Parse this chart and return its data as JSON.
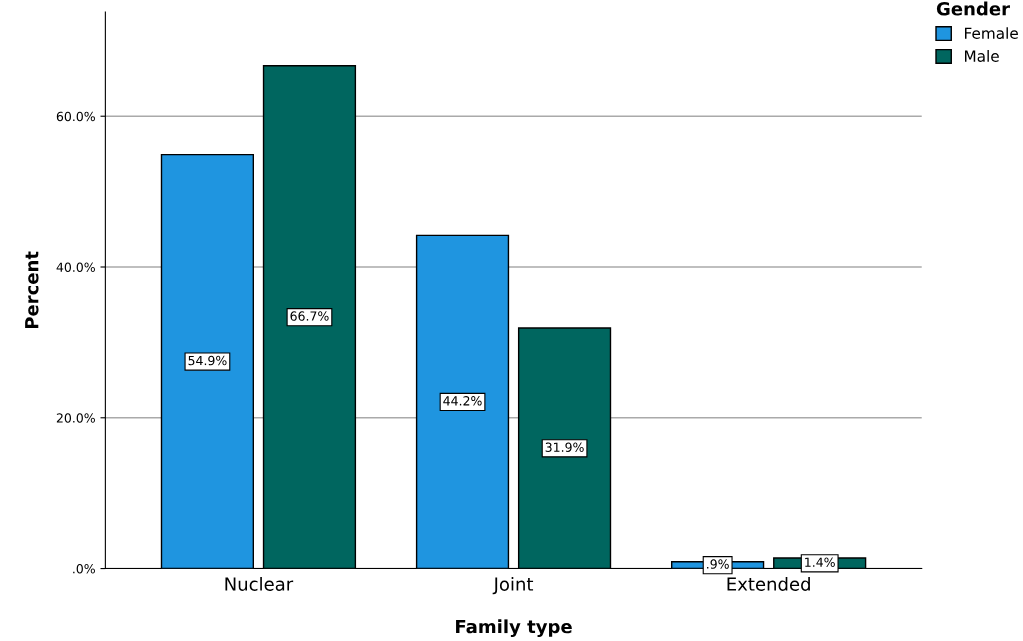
{
  "chart_data": {
    "type": "bar",
    "xlabel": "Family type",
    "ylabel": "Percent",
    "categories": [
      "Nuclear",
      "Joint",
      "Extended"
    ],
    "series": [
      {
        "name": "Female",
        "color": "#1f95e0",
        "values": [
          54.9,
          44.2,
          0.9
        ],
        "value_labels": [
          "54.9%",
          "44.2%",
          ".9%"
        ]
      },
      {
        "name": "Male",
        "color": "#00665f",
        "values": [
          66.7,
          31.9,
          1.4
        ],
        "value_labels": [
          "66.7%",
          "31.9%",
          "1.4%"
        ]
      }
    ],
    "ylim": [
      0,
      73.8
    ],
    "yticks": [
      {
        "value": 0,
        "label": ".0%"
      },
      {
        "value": 20,
        "label": "20.0%"
      },
      {
        "value": 40,
        "label": "40.0%"
      },
      {
        "value": 60,
        "label": "60.0%"
      }
    ],
    "grid": "y",
    "legend": "top right",
    "legend_title": "Gender"
  }
}
